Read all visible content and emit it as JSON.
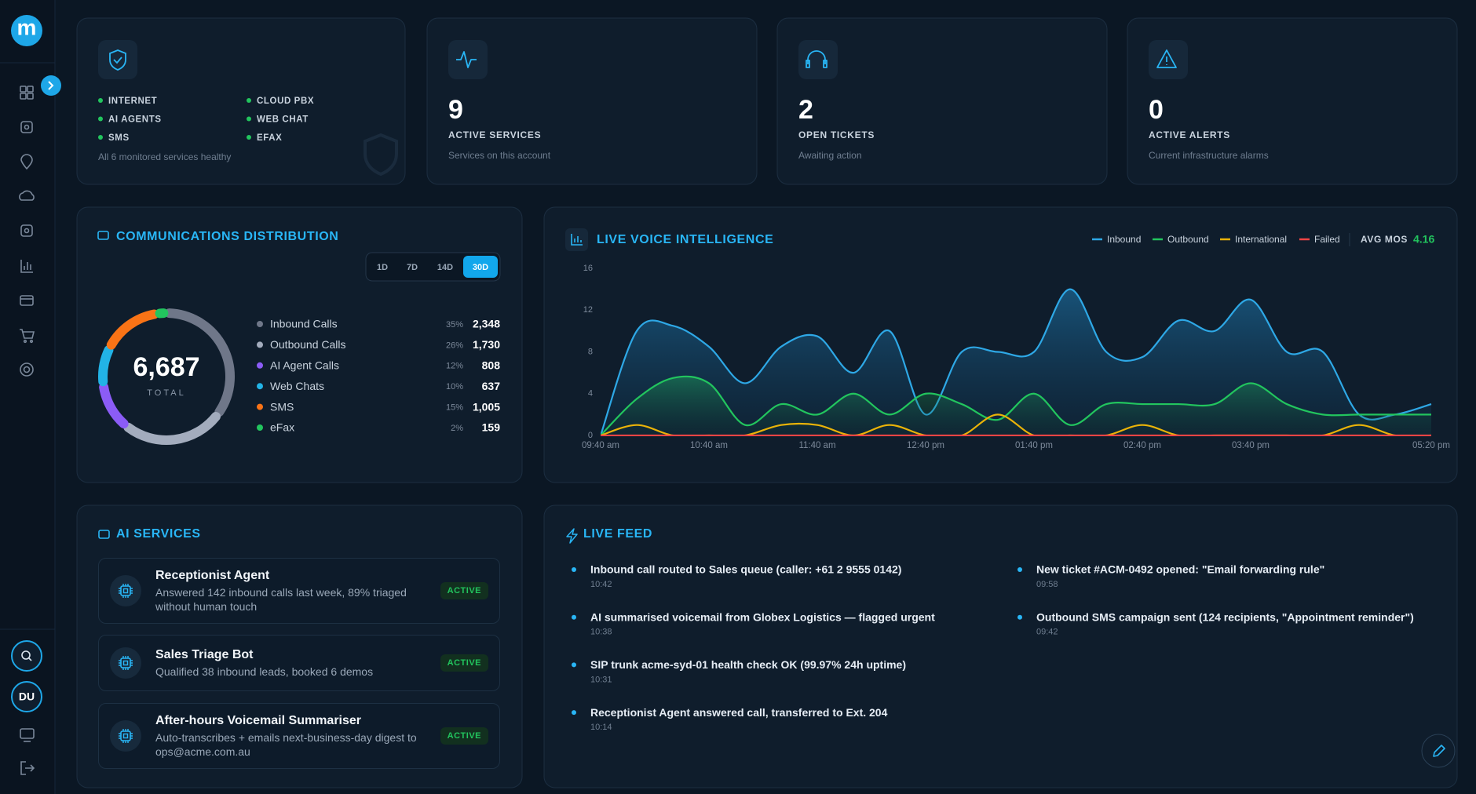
{
  "sidebar": {
    "logo": "m",
    "avatar": "DU"
  },
  "status_card": {
    "services": [
      "INTERNET",
      "AI AGENTS",
      "SMS",
      "CLOUD PBX",
      "WEB CHAT",
      "EFAX"
    ],
    "note": "All 6 monitored services healthy"
  },
  "stat_cards": [
    {
      "value": 9,
      "label": "ACTIVE SERVICES",
      "note": "Services on this account"
    },
    {
      "value": 2,
      "label": "OPEN TICKETS",
      "note": "Awaiting action"
    },
    {
      "value": 0,
      "label": "ACTIVE ALERTS",
      "note": "Current infrastructure alarms"
    }
  ],
  "distribution": {
    "title": "COMMUNICATIONS DISTRIBUTION",
    "ranges": [
      "1D",
      "7D",
      "14D",
      "30D"
    ],
    "active_range": "30D",
    "total": "6,687",
    "total_caption": "TOTAL",
    "chart_data": {
      "type": "donut",
      "categories": [
        "Inbound Calls",
        "Outbound Calls",
        "AI Agent Calls",
        "Web Chats",
        "SMS",
        "eFax"
      ],
      "values": [
        2348,
        1730,
        808,
        637,
        1005,
        159
      ],
      "value_labels": [
        "2,348",
        "1,730",
        "808",
        "637",
        "1,005",
        "159"
      ],
      "percent_labels": [
        "35%",
        "26%",
        "12%",
        "10%",
        "15%",
        "2%"
      ],
      "colors": [
        "#6f7789",
        "#a3acbd",
        "#8b5cf6",
        "#22b3e6",
        "#f97316",
        "#22c55e"
      ]
    }
  },
  "voice": {
    "title": "LIVE VOICE INTELLIGENCE",
    "mos_label": "AVG MOS",
    "mos": 4.16,
    "chart_data": {
      "type": "area",
      "categories": [
        "09:40 am",
        null,
        null,
        "10:40 am",
        null,
        null,
        "11:40 am",
        null,
        null,
        "12:40 pm",
        null,
        null,
        "01:40 pm",
        null,
        null,
        "02:40 pm",
        null,
        null,
        "03:40 pm",
        null,
        null,
        null,
        null,
        "05:20 pm"
      ],
      "ylim": [
        0,
        16
      ],
      "yticks": [
        0,
        4,
        8,
        12,
        16
      ],
      "series": [
        {
          "name": "Inbound",
          "color": "#2ea8e6",
          "fill": true,
          "values": [
            0,
            10,
            10.5,
            8.5,
            5,
            8.5,
            9.5,
            6,
            10,
            2,
            8,
            8,
            8,
            14,
            8,
            7.5,
            11,
            10,
            13,
            8,
            8,
            2,
            2,
            3
          ]
        },
        {
          "name": "Outbound",
          "color": "#22c55e",
          "fill": true,
          "values": [
            0,
            3.5,
            5.5,
            5,
            1,
            3,
            2,
            4,
            2,
            4,
            3,
            1.5,
            4,
            1,
            3,
            3,
            3,
            3,
            5,
            3,
            2,
            2,
            2,
            2
          ]
        },
        {
          "name": "International",
          "color": "#eab308",
          "fill": false,
          "values": [
            0,
            1,
            0,
            0,
            0,
            1,
            1,
            0,
            1,
            0,
            0,
            2,
            0,
            0,
            0,
            1,
            0,
            0,
            0,
            0,
            0,
            1,
            0,
            0
          ]
        },
        {
          "name": "Failed",
          "color": "#ef4444",
          "fill": false,
          "values": [
            0,
            0,
            0,
            0,
            0,
            0,
            0,
            0,
            0,
            0,
            0,
            0,
            0,
            0,
            0,
            0,
            0,
            0,
            0,
            0,
            0,
            0,
            0,
            0
          ]
        }
      ]
    }
  },
  "ai_services": {
    "title": "AI SERVICES",
    "items": [
      {
        "name": "Receptionist Agent",
        "description": "Answered 142 inbound calls last week, 89% triaged without human touch",
        "status": "ACTIVE"
      },
      {
        "name": "Sales Triage Bot",
        "description": "Qualified 38 inbound leads, booked 6 demos",
        "status": "ACTIVE"
      },
      {
        "name": "After-hours Voicemail Summariser",
        "description": "Auto-transcribes + emails next-business-day digest to ops@acme.com.au",
        "status": "ACTIVE"
      }
    ]
  },
  "live_feed": {
    "title": "LIVE FEED",
    "columns": [
      [
        {
          "text": "Inbound call routed to Sales queue (caller: +61 2 9555 0142)",
          "time": "10:42"
        },
        {
          "text": "AI summarised voicemail from Globex Logistics — flagged urgent",
          "time": "10:38"
        },
        {
          "text": "SIP trunk acme-syd-01 health check OK (99.97% 24h uptime)",
          "time": "10:31"
        },
        {
          "text": "Receptionist Agent answered call, transferred to Ext. 204",
          "time": "10:14"
        }
      ],
      [
        {
          "text": "New ticket #ACM-0492 opened: \"Email forwarding rule\"",
          "time": "09:58"
        },
        {
          "text": "Outbound SMS campaign sent (124 recipients, \"Appointment reminder\")",
          "time": "09:42"
        }
      ]
    ]
  }
}
